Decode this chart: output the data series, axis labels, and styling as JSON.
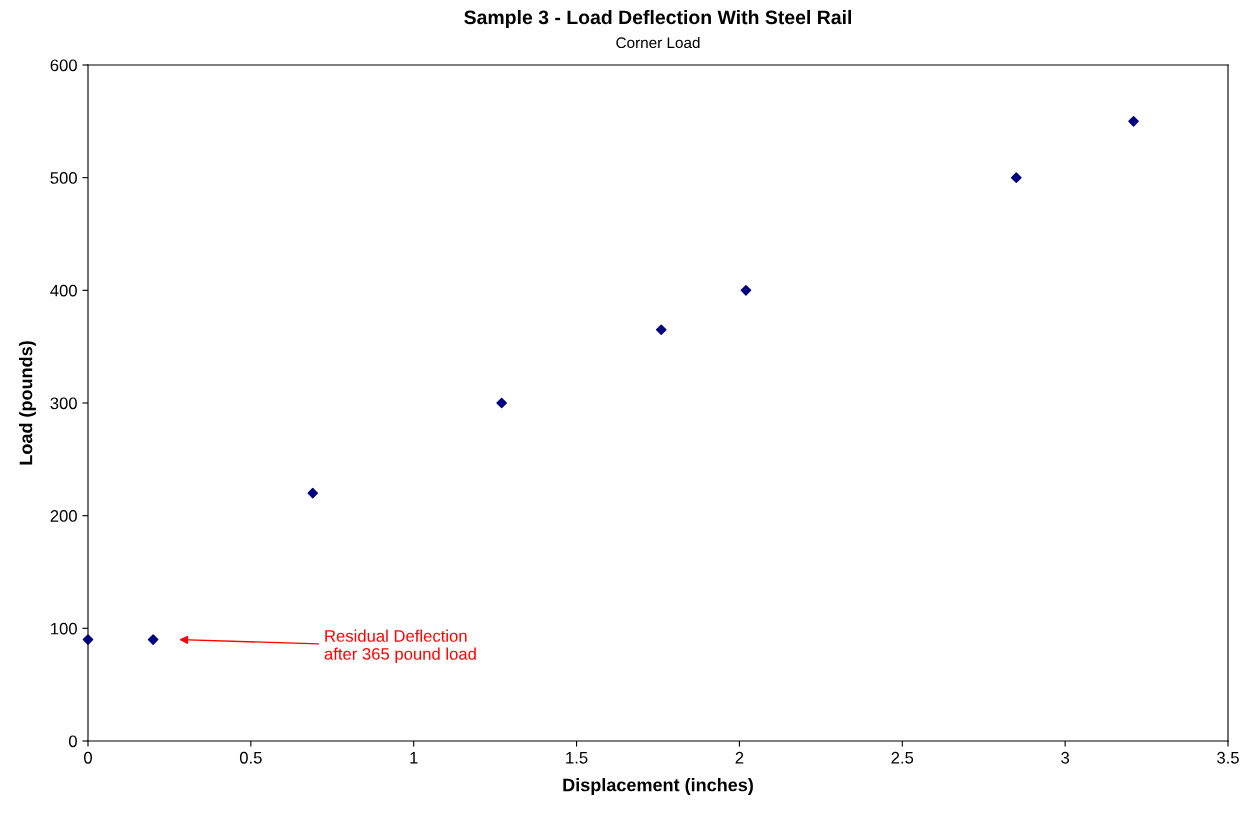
{
  "chart_data": {
    "type": "scatter",
    "title": "Sample 3 - Load Deflection With Steel Rail",
    "subtitle": "Corner Load",
    "xlabel": "Displacement (inches)",
    "ylabel": "Load (pounds)",
    "x": [
      0,
      0.2,
      0.69,
      1.27,
      1.76,
      2.02,
      2.85,
      3.21
    ],
    "series": [
      {
        "color": "#000080",
        "values": [
          90,
          90,
          220,
          300,
          365,
          400,
          500,
          550
        ]
      }
    ],
    "xlim": [
      0,
      3.5
    ],
    "xticks": [
      0,
      0.5,
      1,
      1.5,
      2,
      2.5,
      3,
      3.5
    ],
    "ylim": [
      0,
      600
    ],
    "yticks": [
      0,
      100,
      200,
      300,
      400,
      500,
      600
    ],
    "marker": "diamond",
    "grid": false,
    "legend": false,
    "annotations": [
      "Residual Deflection\nafter 365 pound load"
    ]
  }
}
